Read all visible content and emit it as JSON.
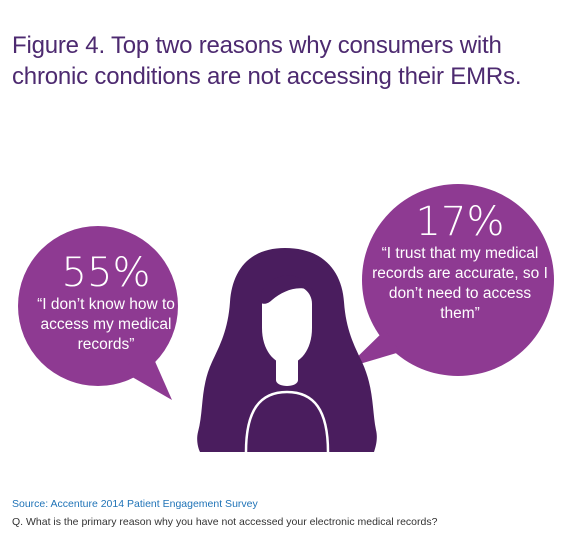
{
  "title": "Figure 4. Top two reasons why consumers with chronic conditions are not accessing their EMRs.",
  "colors": {
    "bubble": "#8e3a92",
    "figure": "#4a1d5e",
    "title": "#4d2a70",
    "source": "#1f73b7"
  },
  "chart_data": {
    "type": "infographic",
    "title": "Figure 4. Top two reasons why consumers with chronic conditions are not accessing their EMRs.",
    "items": [
      {
        "value": 55,
        "label": "55%",
        "quote": "“I don’t know how to access my medical records”"
      },
      {
        "value": 17,
        "label": "17%",
        "quote": "“I trust that my medical records are accurate, so I don’t need to access them”"
      }
    ]
  },
  "icons": {
    "person": "woman-silhouette-icon"
  },
  "source": "Source: Accenture 2014 Patient Engagement Survey",
  "question": "Q. What is the primary reason why you have not accessed your electronic medical records?"
}
